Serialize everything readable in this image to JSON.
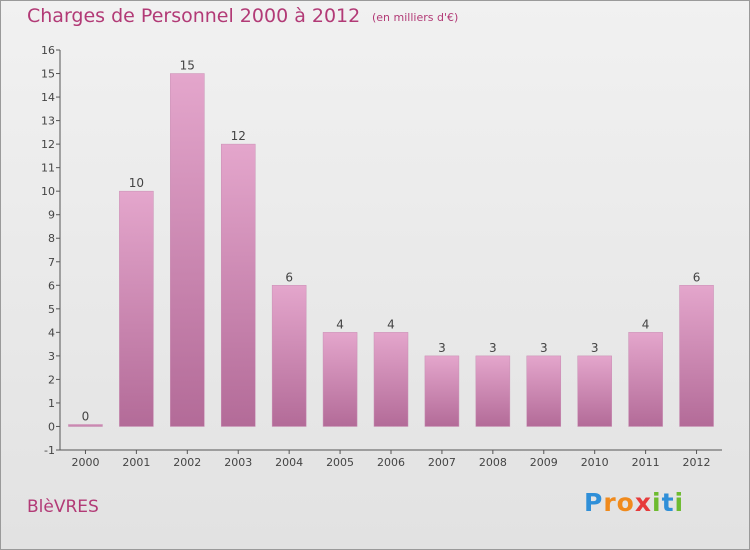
{
  "header": {
    "title": "Charges de Personnel 2000 à 2012",
    "subtitle": "(en milliers d'€)"
  },
  "footer": {
    "commune": "BlèVRES",
    "brand_letters": [
      "P",
      "r",
      "o",
      "x",
      "i",
      "t",
      "i"
    ]
  },
  "colors": {
    "bar_top": "#e4a6cc",
    "bar_bottom": "#b36b98",
    "label": "#444444",
    "accent": "#b23a76"
  },
  "chart_data": {
    "type": "bar",
    "categories": [
      "2000",
      "2001",
      "2002",
      "2003",
      "2004",
      "2005",
      "2006",
      "2007",
      "2008",
      "2009",
      "2010",
      "2011",
      "2012"
    ],
    "values": [
      0,
      10,
      15,
      12,
      6,
      4,
      4,
      3,
      3,
      3,
      3,
      4,
      6
    ],
    "data_labels": [
      "0",
      "10",
      "15",
      "12",
      "6",
      "4",
      "4",
      "3",
      "3",
      "3",
      "3",
      "4",
      "6"
    ],
    "y_ticks": [
      -1,
      0,
      1,
      2,
      3,
      4,
      5,
      6,
      7,
      8,
      9,
      10,
      11,
      12,
      13,
      14,
      15,
      16
    ],
    "ylim": [
      -1,
      16
    ],
    "title": "Charges de Personnel 2000 à 2012",
    "xlabel": "",
    "ylabel": "",
    "grid": false,
    "legend": "none"
  }
}
